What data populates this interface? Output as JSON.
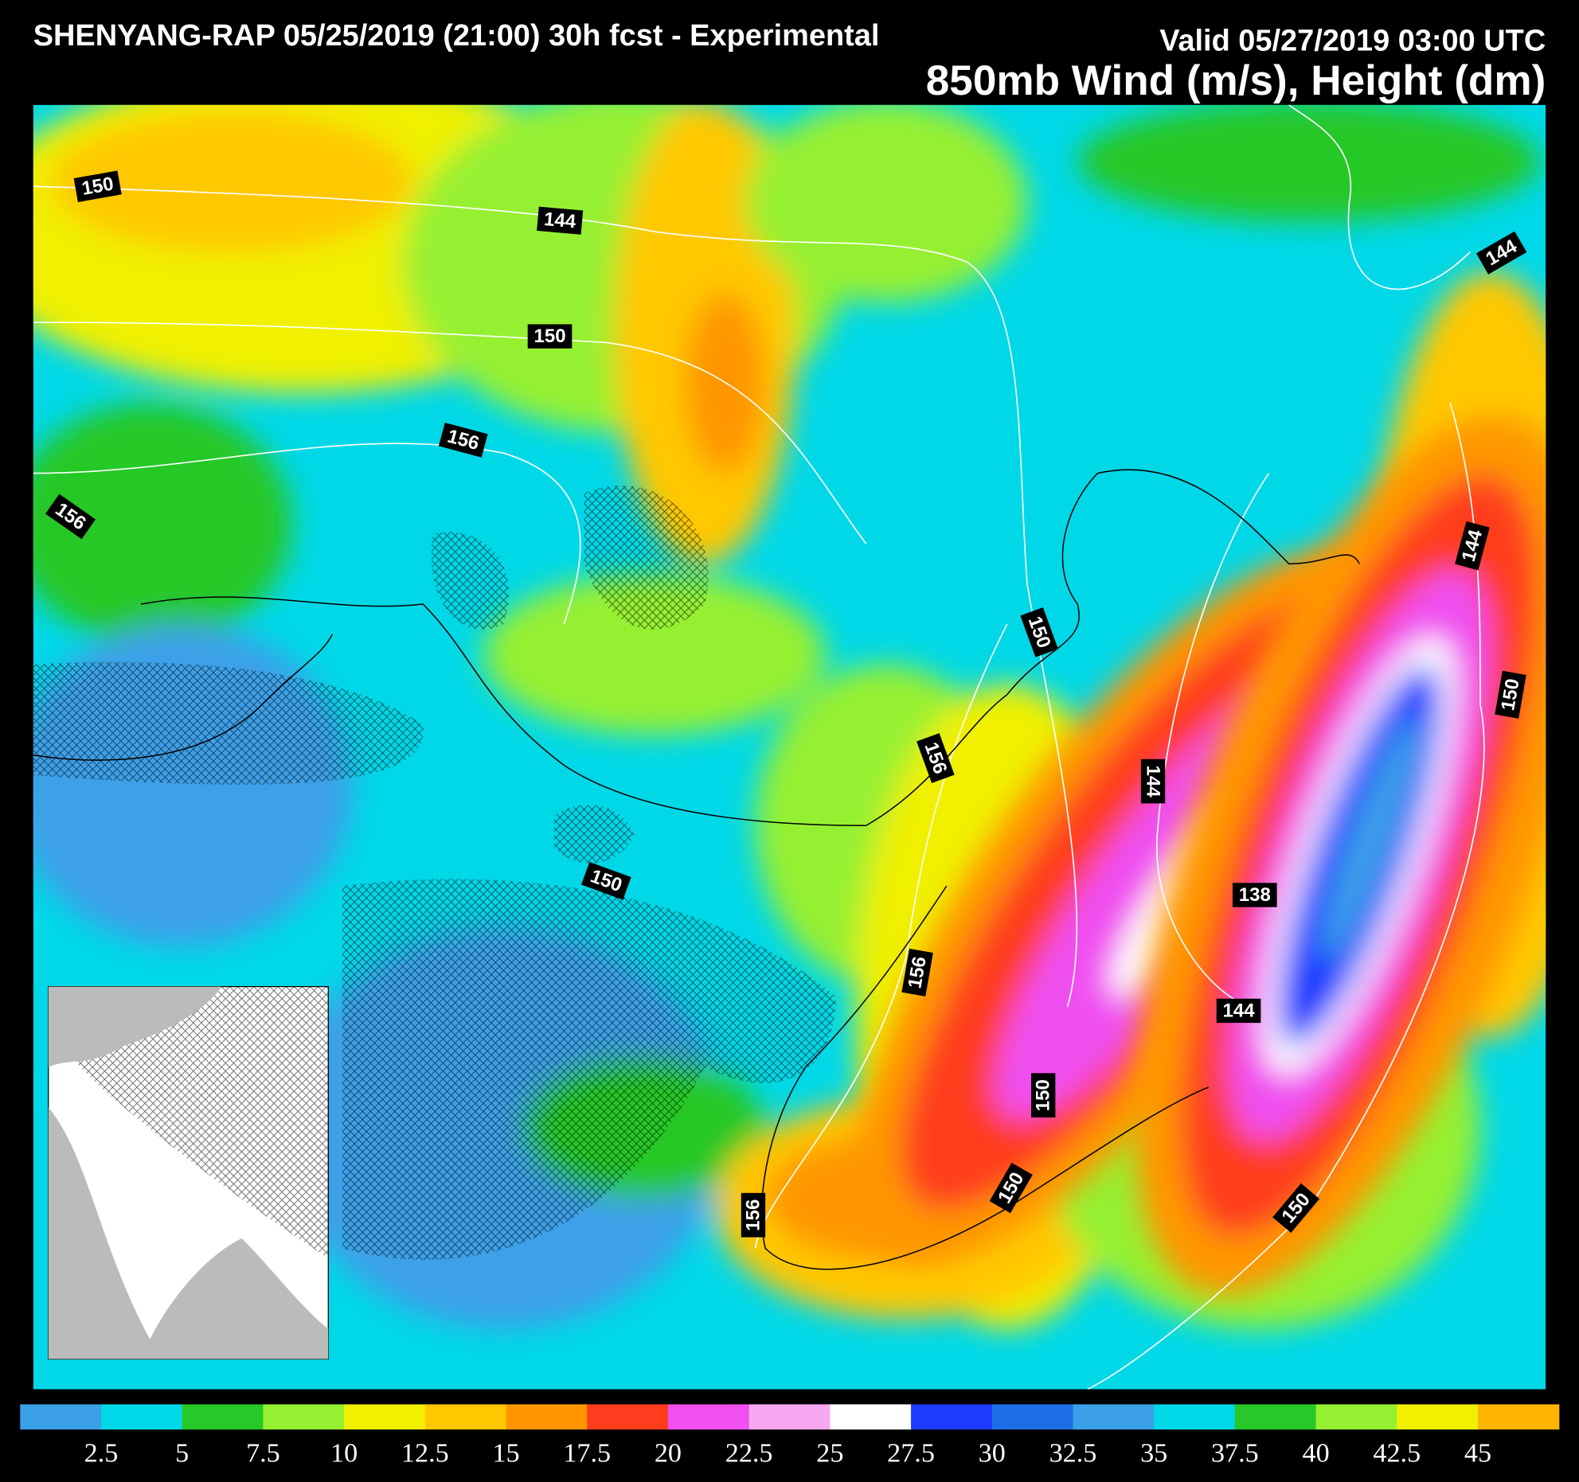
{
  "header": {
    "title": "SHENYANG-RAP 05/25/2019 (21:00) 30h fcst - Experimental",
    "valid": "Valid 05/27/2019 03:00 UTC",
    "field": "850mb Wind (m/s), Height (dm)"
  },
  "contour_labels": [
    150,
    144,
    150,
    156,
    156,
    144,
    150,
    156,
    144,
    150,
    144,
    150,
    138,
    156,
    144,
    150,
    150,
    156,
    150
  ],
  "colorbar": {
    "ticks": [
      2.5,
      5,
      7.5,
      10,
      12.5,
      15,
      17.5,
      20,
      22.5,
      25,
      27.5,
      30,
      32.5,
      35,
      37.5,
      40,
      42.5,
      45
    ],
    "colors": [
      "#3ca0e8",
      "#00d8e8",
      "#28c828",
      "#96f032",
      "#f0f000",
      "#ffc800",
      "#ff9600",
      "#ff3c1e",
      "#f050f0",
      "#f8a8f0",
      "#ffffff",
      "#1e3cff",
      "#1e6ee6",
      "#3ca0e8",
      "#00d8e8",
      "#28c828",
      "#96f032",
      "#f0f000",
      "#ffb400"
    ]
  }
}
